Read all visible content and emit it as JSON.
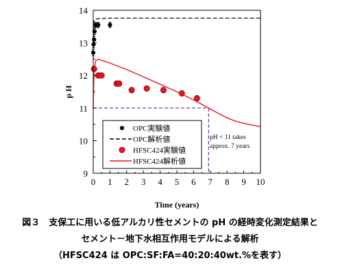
{
  "chart_data": {
    "type": "line",
    "title": "",
    "xlabel": "Time (years)",
    "ylabel": "p H",
    "xlim": [
      0,
      10
    ],
    "ylim": [
      9,
      14
    ],
    "xticks": [
      "0",
      "1",
      "2",
      "3",
      "4",
      "5",
      "6",
      "7",
      "8",
      "9",
      "10"
    ],
    "yticks": [
      "9",
      "10",
      "11",
      "12",
      "13",
      "14"
    ],
    "series": [
      {
        "name": "OPC実験値",
        "kind": "scatter",
        "color": "#000000",
        "points": [
          {
            "x": 0.0,
            "y": 12.7,
            "err": 0.1
          },
          {
            "x": 0.02,
            "y": 12.95,
            "err": 0.1
          },
          {
            "x": 0.05,
            "y": 13.1,
            "err": 0.1
          },
          {
            "x": 0.08,
            "y": 13.35,
            "err": 0.1
          },
          {
            "x": 0.15,
            "y": 13.55,
            "err": 0.08
          },
          {
            "x": 0.3,
            "y": 13.55,
            "err": 0.08
          },
          {
            "x": 1.0,
            "y": 13.55,
            "err": 0.08
          }
        ]
      },
      {
        "name": "OPC解析値",
        "kind": "dashed-line",
        "color": "#000000",
        "points": [
          {
            "x": 0.0,
            "y": 13.0
          },
          {
            "x": 0.02,
            "y": 13.55
          },
          {
            "x": 0.05,
            "y": 13.68
          },
          {
            "x": 0.1,
            "y": 13.72
          },
          {
            "x": 0.3,
            "y": 13.74
          },
          {
            "x": 1.0,
            "y": 13.76
          },
          {
            "x": 3.0,
            "y": 13.76
          },
          {
            "x": 10.0,
            "y": 13.76
          }
        ]
      },
      {
        "name": "HFSC424実験値",
        "kind": "scatter",
        "color": "#e8141b",
        "points": [
          {
            "x": 0.05,
            "y": 12.2,
            "err": 0.08
          },
          {
            "x": 0.3,
            "y": 12.0,
            "err": 0.08
          },
          {
            "x": 0.5,
            "y": 12.0,
            "err": 0.08
          },
          {
            "x": 1.4,
            "y": 11.75,
            "err": 0.08
          },
          {
            "x": 1.55,
            "y": 11.75,
            "err": 0.08
          },
          {
            "x": 2.3,
            "y": 11.55,
            "err": 0.08
          },
          {
            "x": 3.2,
            "y": 11.6,
            "err": 0.08
          },
          {
            "x": 4.2,
            "y": 11.55,
            "err": 0.08
          },
          {
            "x": 5.3,
            "y": 11.45,
            "err": 0.08
          },
          {
            "x": 6.2,
            "y": 11.3,
            "err": 0.08
          }
        ]
      },
      {
        "name": "HFSC424解析値",
        "kind": "line",
        "color": "#e8141b",
        "points": [
          {
            "x": 0.0,
            "y": 11.0
          },
          {
            "x": 0.03,
            "y": 11.8
          },
          {
            "x": 0.08,
            "y": 12.25
          },
          {
            "x": 0.15,
            "y": 12.45
          },
          {
            "x": 0.3,
            "y": 12.5
          },
          {
            "x": 0.6,
            "y": 12.45
          },
          {
            "x": 1.0,
            "y": 12.38
          },
          {
            "x": 2.0,
            "y": 12.18
          },
          {
            "x": 3.0,
            "y": 11.96
          },
          {
            "x": 4.0,
            "y": 11.73
          },
          {
            "x": 5.0,
            "y": 11.5
          },
          {
            "x": 6.0,
            "y": 11.25
          },
          {
            "x": 6.8,
            "y": 11.03
          },
          {
            "x": 7.5,
            "y": 10.83
          },
          {
            "x": 8.0,
            "y": 10.7
          },
          {
            "x": 8.5,
            "y": 10.6
          },
          {
            "x": 9.0,
            "y": 10.53
          },
          {
            "x": 9.5,
            "y": 10.48
          },
          {
            "x": 10.0,
            "y": 10.43
          }
        ]
      }
    ],
    "reference": {
      "horizontal_y": 11.0,
      "vertical_x": 6.9,
      "color": "#7b1fa2"
    },
    "annotation": {
      "line1": "pH < 11 takes",
      "line2": "approx. 7 years"
    },
    "legend": {
      "position": "left-middle",
      "items": [
        "OPC実験値",
        "OPC解析値",
        "HFSC424実験値",
        "HFSC424解析値"
      ]
    }
  },
  "caption": {
    "line1": "図３　支保工に用いる低アルカリ性セメントの pH の経時変化測定結果と",
    "line2": "セメント－地下水相互作用モデルによる解析",
    "line3": "（HFSC424 は OPC:SF:FA=40:20:40wt.%を表す）"
  }
}
